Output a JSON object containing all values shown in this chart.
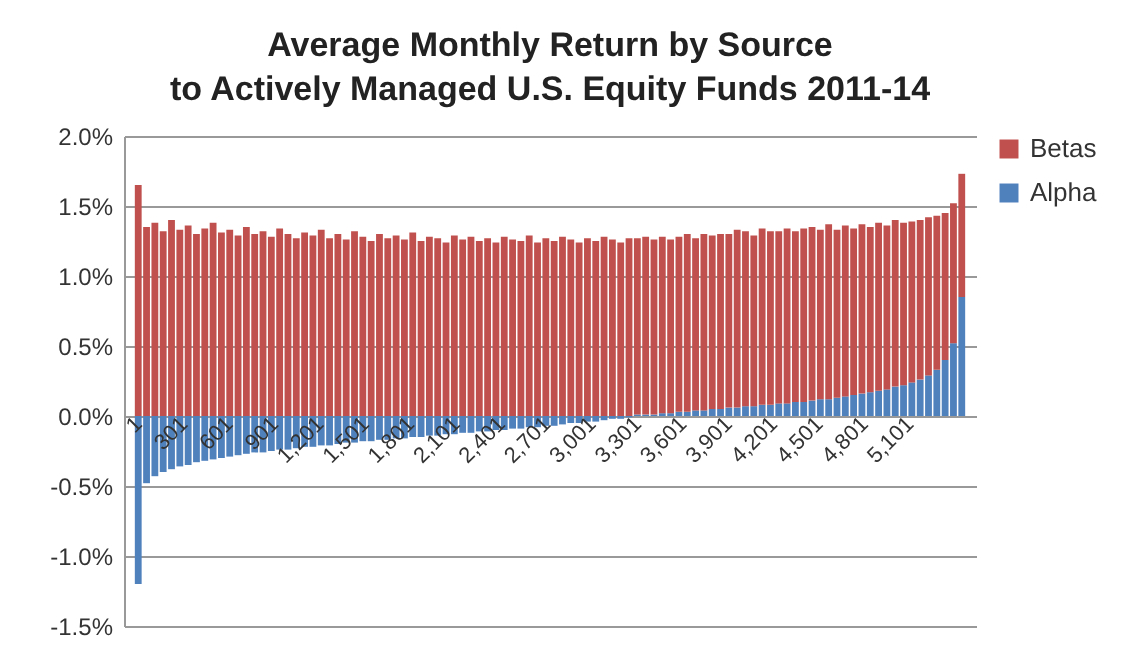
{
  "chart_data": {
    "type": "bar",
    "stacked": true,
    "title": "Average Monthly Return by Source\nto Actively Managed U.S. Equity Funds 2011-14",
    "x": [
      1,
      56,
      111,
      166,
      221,
      276,
      331,
      386,
      441,
      496,
      551,
      606,
      661,
      716,
      771,
      826,
      881,
      936,
      991,
      1046,
      1101,
      1156,
      1211,
      1266,
      1321,
      1376,
      1431,
      1486,
      1541,
      1596,
      1651,
      1706,
      1761,
      1816,
      1871,
      1926,
      1981,
      2036,
      2091,
      2146,
      2201,
      2256,
      2311,
      2366,
      2421,
      2476,
      2531,
      2586,
      2641,
      2696,
      2751,
      2806,
      2861,
      2916,
      2971,
      3026,
      3081,
      3136,
      3191,
      3246,
      3301,
      3356,
      3411,
      3466,
      3521,
      3576,
      3631,
      3686,
      3741,
      3796,
      3851,
      3906,
      3961,
      4016,
      4071,
      4126,
      4181,
      4236,
      4291,
      4346,
      4401,
      4456,
      4511,
      4566,
      4621,
      4676,
      4731,
      4786,
      4841,
      4896,
      4951,
      5006,
      5061,
      5116,
      5171,
      5226,
      5281,
      5336,
      5391,
      5446
    ],
    "series": [
      {
        "name": "Alpha",
        "color": "#4f81bd",
        "values": [
          -1.2,
          -0.48,
          -0.43,
          -0.4,
          -0.38,
          -0.36,
          -0.35,
          -0.33,
          -0.32,
          -0.31,
          -0.3,
          -0.29,
          -0.28,
          -0.27,
          -0.26,
          -0.26,
          -0.25,
          -0.24,
          -0.24,
          -0.23,
          -0.22,
          -0.22,
          -0.21,
          -0.21,
          -0.2,
          -0.19,
          -0.19,
          -0.18,
          -0.18,
          -0.17,
          -0.17,
          -0.16,
          -0.16,
          -0.15,
          -0.15,
          -0.14,
          -0.14,
          -0.13,
          -0.13,
          -0.12,
          -0.12,
          -0.11,
          -0.11,
          -0.1,
          -0.1,
          -0.09,
          -0.09,
          -0.08,
          -0.08,
          -0.07,
          -0.07,
          -0.06,
          -0.05,
          -0.05,
          -0.04,
          -0.04,
          -0.03,
          -0.02,
          -0.02,
          -0.01,
          0.01,
          0.01,
          0.01,
          0.02,
          0.02,
          0.03,
          0.03,
          0.04,
          0.04,
          0.05,
          0.05,
          0.06,
          0.06,
          0.07,
          0.07,
          0.08,
          0.08,
          0.09,
          0.09,
          0.1,
          0.1,
          0.11,
          0.12,
          0.12,
          0.13,
          0.14,
          0.15,
          0.16,
          0.17,
          0.18,
          0.19,
          0.21,
          0.22,
          0.24,
          0.26,
          0.29,
          0.33,
          0.4,
          0.52,
          0.85
        ]
      },
      {
        "name": "Betas",
        "color": "#c0504d",
        "values": [
          1.65,
          1.35,
          1.38,
          1.32,
          1.4,
          1.33,
          1.36,
          1.3,
          1.34,
          1.38,
          1.31,
          1.33,
          1.29,
          1.35,
          1.3,
          1.32,
          1.28,
          1.34,
          1.3,
          1.27,
          1.31,
          1.29,
          1.33,
          1.27,
          1.3,
          1.26,
          1.32,
          1.28,
          1.25,
          1.3,
          1.27,
          1.29,
          1.26,
          1.31,
          1.25,
          1.28,
          1.27,
          1.24,
          1.29,
          1.26,
          1.28,
          1.25,
          1.27,
          1.24,
          1.28,
          1.26,
          1.25,
          1.29,
          1.24,
          1.27,
          1.25,
          1.28,
          1.26,
          1.24,
          1.27,
          1.25,
          1.28,
          1.26,
          1.24,
          1.27,
          1.26,
          1.27,
          1.25,
          1.26,
          1.24,
          1.25,
          1.27,
          1.23,
          1.26,
          1.24,
          1.25,
          1.24,
          1.27,
          1.25,
          1.22,
          1.26,
          1.24,
          1.23,
          1.25,
          1.22,
          1.24,
          1.24,
          1.21,
          1.25,
          1.2,
          1.22,
          1.19,
          1.21,
          1.18,
          1.2,
          1.17,
          1.19,
          1.16,
          1.15,
          1.14,
          1.13,
          1.1,
          1.05,
          1.0,
          0.88
        ]
      }
    ],
    "xlim": [
      -27,
      5474
    ],
    "xticks": [
      1,
      301,
      601,
      901,
      {
        "value": 1201,
        "label": "1,201"
      },
      {
        "value": 1501,
        "label": "1,501"
      },
      {
        "value": 1801,
        "label": "1,801"
      },
      {
        "value": 2101,
        "label": "2,101"
      },
      {
        "value": 2401,
        "label": "2,401"
      },
      {
        "value": 2701,
        "label": "2,701"
      },
      {
        "value": 3001,
        "label": "3,001"
      },
      {
        "value": 3301,
        "label": "3,301"
      },
      {
        "value": 3601,
        "label": "3,601"
      },
      {
        "value": 3901,
        "label": "3,901"
      },
      {
        "value": 4201,
        "label": "4,201"
      },
      {
        "value": 4501,
        "label": "4,501"
      },
      {
        "value": 4801,
        "label": "4,801"
      },
      {
        "value": 5101,
        "label": "5,101"
      }
    ],
    "ylim": [
      -1.5,
      2.0
    ],
    "yticks": [
      {
        "value": -1.5,
        "label": "-1.5%"
      },
      {
        "value": -1.0,
        "label": "-1.0%"
      },
      {
        "value": -0.5,
        "label": "-0.5%"
      },
      {
        "value": 0,
        "label": "0.0%"
      },
      {
        "value": 0.5,
        "label": "0.5%"
      },
      {
        "value": 1.0,
        "label": "1.0%"
      },
      {
        "value": 1.5,
        "label": "1.5%"
      },
      {
        "value": 2.0,
        "label": "2.0%"
      }
    ],
    "grid": "y",
    "legend": "right"
  }
}
